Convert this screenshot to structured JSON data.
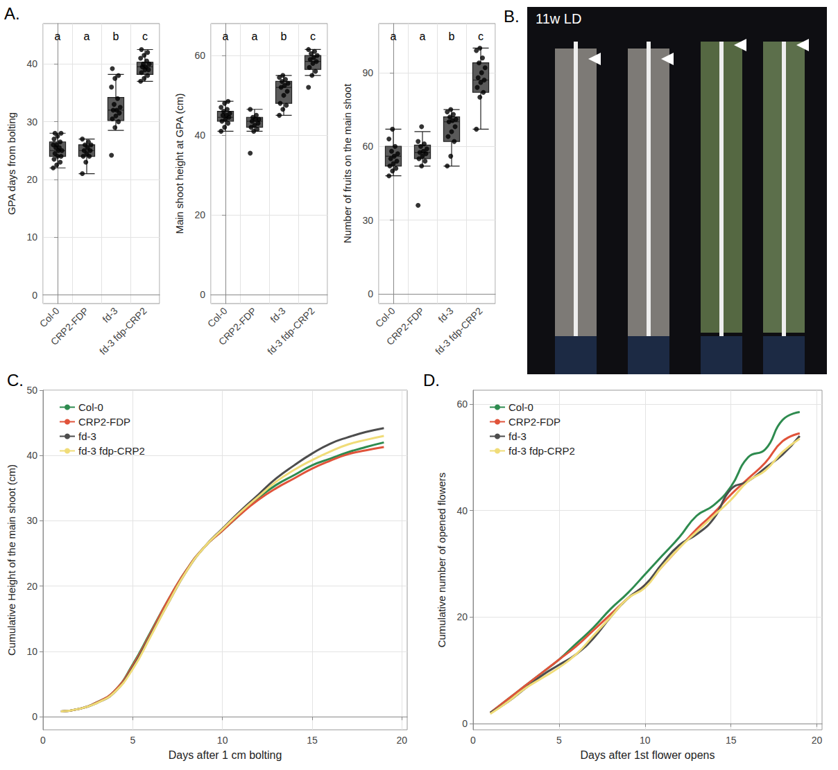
{
  "chart_data": [
    {
      "type": "boxplot",
      "panel_label": "A.",
      "ylabel": "GPA days from bolting",
      "categories": [
        "Col-0",
        "CRP2-FDP",
        "fd-3",
        "fd-3 fdp-CRP2"
      ],
      "annotations": [
        "a",
        "a",
        "b",
        "c"
      ],
      "boxes": [
        [
          22,
          24,
          25,
          26.5,
          28
        ],
        [
          21,
          24,
          25,
          26,
          27
        ],
        [
          28.5,
          30.2,
          32,
          34.2,
          38.2
        ],
        [
          37,
          38.2,
          39.5,
          40.3,
          42.5
        ]
      ],
      "points": [
        [
          22,
          22.5,
          23,
          23.5,
          24,
          24,
          24.5,
          25,
          25,
          25.5,
          25.5,
          26,
          26,
          26.5,
          27,
          27.5,
          28,
          28
        ],
        [
          21,
          23,
          24,
          24,
          24.5,
          25,
          25,
          25.5,
          26,
          26,
          26.5,
          27
        ],
        [
          24.2,
          29,
          30,
          30.5,
          31,
          31.5,
          32,
          32,
          32.5,
          33,
          34,
          36,
          37.5,
          38,
          39.2
        ],
        [
          37,
          37.5,
          38,
          38.5,
          39,
          39,
          39.5,
          39.5,
          40,
          40,
          40.5,
          41,
          41.5,
          42,
          42.5
        ]
      ],
      "color": "#5a5a5a",
      "ylim": [
        -1.5,
        47
      ],
      "yticks": [
        0,
        10,
        20,
        30,
        40
      ],
      "grid": true
    },
    {
      "type": "boxplot",
      "ylabel": "Main shoot height at GPA (cm)",
      "categories": [
        "Col-0",
        "CRP2-FDP",
        "fd-3",
        "fd-3 fdp-CRP2"
      ],
      "annotations": [
        "a",
        "a",
        "b",
        "c"
      ],
      "boxes": [
        [
          41,
          43.5,
          44.5,
          46,
          48.5
        ],
        [
          41,
          42,
          43.5,
          44.5,
          46.5
        ],
        [
          45,
          48,
          52,
          53.5,
          55
        ],
        [
          55,
          56.5,
          58.5,
          60,
          61.5
        ]
      ],
      "points": [
        [
          41,
          42,
          43,
          43.5,
          44,
          44.5,
          45,
          45,
          45.5,
          46,
          46.5,
          47,
          48,
          48.5
        ],
        [
          35.5,
          41,
          41.5,
          42,
          42.5,
          43,
          43.5,
          44,
          44,
          44.5,
          45,
          46.5
        ],
        [
          45,
          46.5,
          47.5,
          48,
          50,
          51,
          52,
          52.5,
          53,
          53.5,
          54,
          54.5,
          55
        ],
        [
          52,
          55,
          56,
          57,
          58,
          58.5,
          59,
          59.5,
          60,
          60.5,
          61,
          61.5
        ]
      ],
      "color": "#5a5a5a",
      "ylim": [
        -2.2,
        68
      ],
      "yticks": [
        0,
        20,
        40,
        60
      ],
      "grid": true
    },
    {
      "type": "boxplot",
      "ylabel": "Number of fruits on the main shoot",
      "categories": [
        "Col-0",
        "CRP2-FDP",
        "fd-3",
        "fd-3 fdp-CRP2"
      ],
      "annotations": [
        "a",
        "a",
        "b",
        "c"
      ],
      "boxes": [
        [
          48,
          52,
          56,
          60,
          67
        ],
        [
          52,
          55,
          57.5,
          60.5,
          66
        ],
        [
          52,
          62,
          70,
          72,
          75
        ],
        [
          67,
          82,
          87,
          94,
          100
        ]
      ],
      "points": [
        [
          48,
          50,
          51,
          52,
          53,
          54,
          55,
          56,
          57,
          58,
          60,
          63,
          67
        ],
        [
          36,
          52,
          54,
          55,
          56,
          57,
          57.5,
          58,
          59,
          60,
          61,
          62,
          68
        ],
        [
          52,
          56,
          62,
          64,
          66,
          68,
          70,
          70.5,
          71,
          72,
          73,
          74,
          75
        ],
        [
          67,
          80,
          82,
          84,
          86,
          87,
          88,
          90,
          92,
          94,
          96,
          99,
          100
        ]
      ],
      "color": "#5a5a5a",
      "ylim": [
        -4,
        110
      ],
      "yticks": [
        0,
        30,
        60,
        90
      ],
      "grid": true
    },
    {
      "type": "photo",
      "panel_label": "B.",
      "title": "11w LD"
    },
    {
      "type": "line",
      "panel_label": "C.",
      "xlabel": "Days after 1 cm bolting",
      "ylabel": "Cumulative Height of the main shoot (cm)",
      "x": [
        1,
        2,
        3,
        4,
        5,
        6,
        7,
        8,
        9,
        10,
        11,
        12,
        13,
        14,
        15,
        16,
        17,
        18,
        19
      ],
      "series": [
        {
          "name": "Col-0",
          "color": "#2e8b4f",
          "values": [
            0.8,
            1.2,
            2.2,
            4,
            8,
            13,
            18,
            22.5,
            26,
            28.5,
            31,
            33.5,
            35.5,
            37,
            38.5,
            39.5,
            40.5,
            41.3,
            42
          ]
        },
        {
          "name": "CRP2-FDP",
          "color": "#e0533a",
          "values": [
            0.8,
            1.2,
            2.2,
            4,
            7.8,
            12.8,
            18,
            22.5,
            26,
            28.5,
            31,
            33.2,
            35,
            36.5,
            38,
            39.2,
            40.2,
            40.8,
            41.3
          ]
        },
        {
          "name": "fd-3",
          "color": "#4d4d4d",
          "values": [
            0.8,
            1.2,
            2.1,
            3.8,
            7.5,
            12.5,
            17.5,
            22.3,
            26,
            28.8,
            31.5,
            34,
            36.5,
            38.5,
            40.3,
            41.8,
            42.8,
            43.6,
            44.2
          ]
        },
        {
          "name": "fd-3 fdp-CRP2",
          "color": "#f0dc78",
          "values": [
            0.8,
            1.2,
            2.1,
            3.8,
            7.3,
            12.3,
            17.5,
            22.3,
            26,
            28.7,
            31.3,
            33.7,
            36,
            37.8,
            39.3,
            40.6,
            41.7,
            42.4,
            43
          ]
        }
      ],
      "xlim": [
        0,
        20.3
      ],
      "xticks": [
        0,
        5,
        10,
        15,
        20
      ],
      "ylim": [
        -2,
        50
      ],
      "yticks": [
        0,
        10,
        20,
        30,
        40,
        50
      ],
      "grid": true,
      "legend": "top-left"
    },
    {
      "type": "line",
      "panel_label": "D.",
      "xlabel": "Days after 1st flower opens",
      "ylabel": "Cumulative number of opened flowers",
      "x": [
        1,
        2,
        3,
        4,
        5,
        6,
        7,
        8,
        9,
        10,
        11,
        12,
        13,
        14,
        15,
        16,
        17,
        18,
        19
      ],
      "series": [
        {
          "name": "Col-0",
          "color": "#2e8b4f",
          "values": [
            2,
            4.5,
            7,
            9.5,
            12,
            15,
            18,
            21.5,
            24.5,
            28,
            31.5,
            35,
            39,
            41,
            44.5,
            50,
            51.5,
            57,
            58.5
          ]
        },
        {
          "name": "CRP2-FDP",
          "color": "#e0533a",
          "values": [
            2,
            4.5,
            7,
            9.5,
            12,
            14.5,
            17.5,
            20.5,
            23.5,
            26,
            29.5,
            33,
            36.5,
            39.5,
            43,
            46,
            49,
            53,
            54.5
          ]
        },
        {
          "name": "fd-3",
          "color": "#4d4d4d",
          "values": [
            2,
            4,
            6.5,
            9,
            11,
            13,
            16,
            20,
            23.5,
            26,
            30,
            33.5,
            35.5,
            38.5,
            44,
            45.5,
            48,
            50.5,
            54
          ]
        },
        {
          "name": "fd-3 fdp-CRP2",
          "color": "#f0dc78",
          "values": [
            1.8,
            4,
            6.5,
            8.5,
            10.5,
            13,
            16.5,
            20,
            23.5,
            25.5,
            29.5,
            33,
            36,
            39,
            42,
            45.5,
            47.5,
            51,
            53.5
          ]
        }
      ],
      "xlim": [
        0,
        20.3
      ],
      "xticks": [
        0,
        5,
        10,
        15,
        20
      ],
      "ylim": [
        -1.2,
        62.6
      ],
      "yticks": [
        0,
        20,
        40,
        60
      ],
      "grid": true,
      "legend": "top-left"
    }
  ]
}
